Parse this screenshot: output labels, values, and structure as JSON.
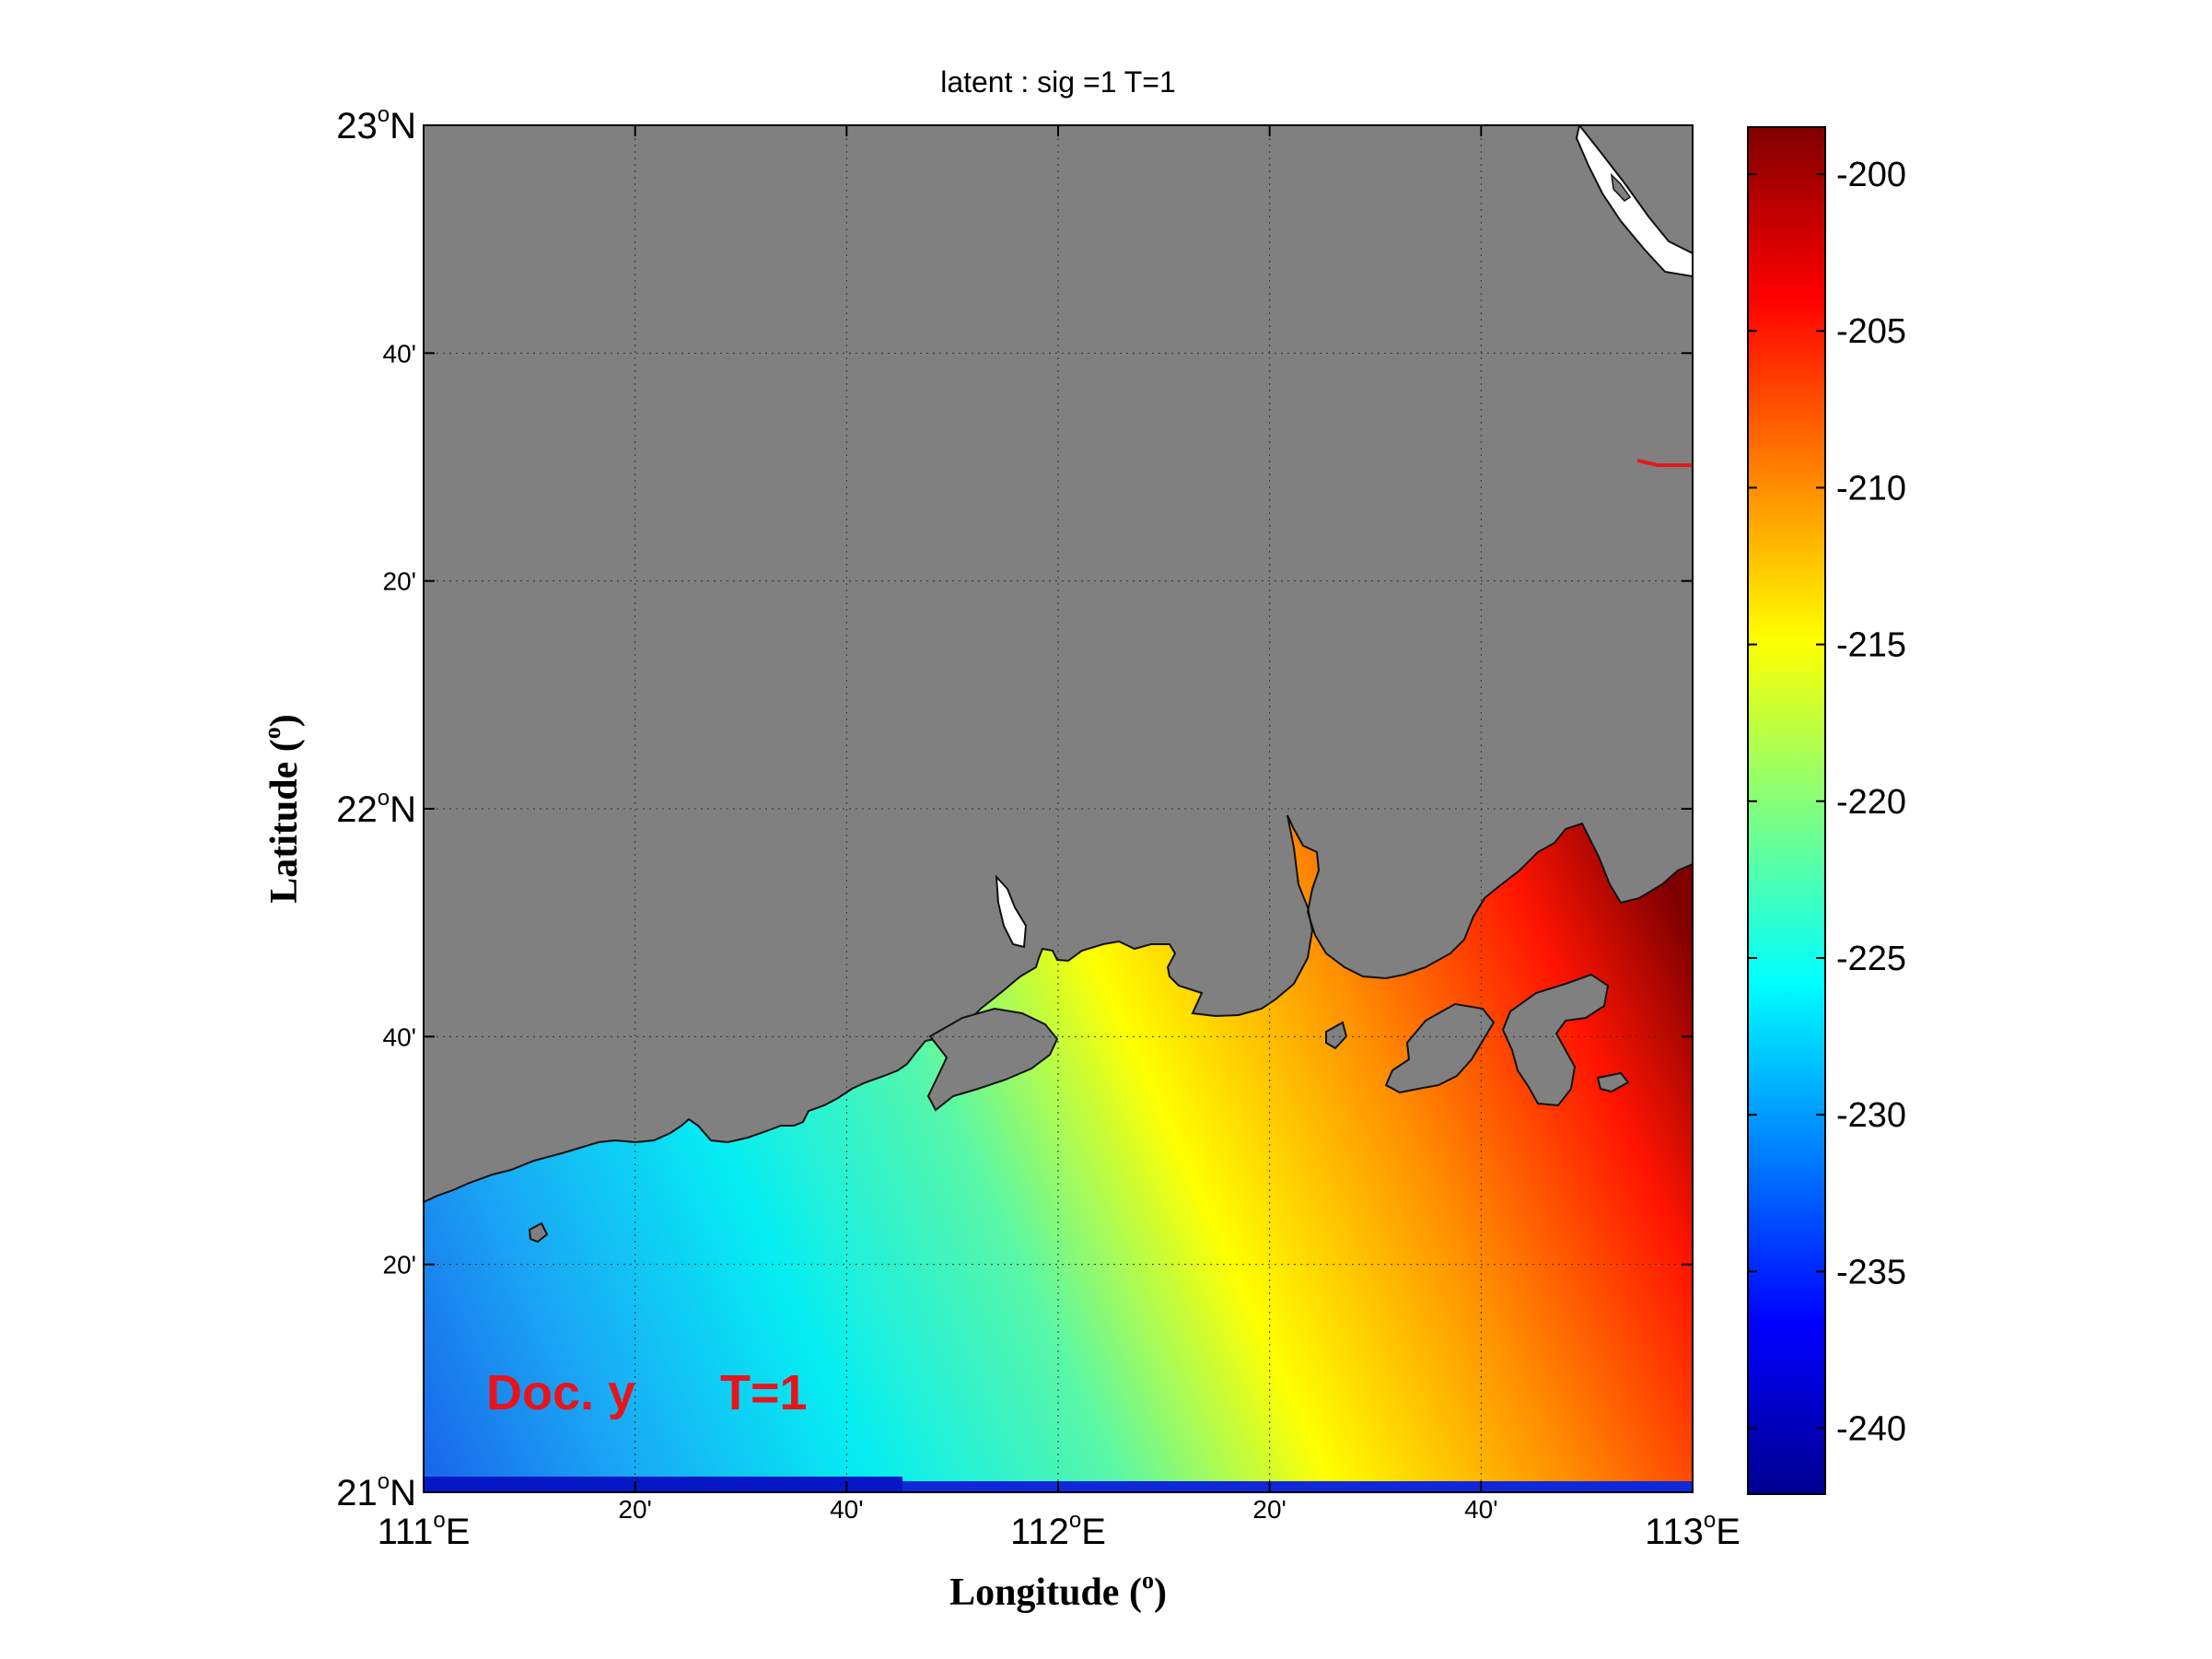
{
  "title": "latent : sig =1   T=1",
  "xlabel": "Longitude (",
  "ylabel": "Latitude (",
  "label_sup": "o",
  "label_close": ")",
  "x_ticks": [
    {
      "deg": "111",
      "suffix": "E",
      "minor": false
    },
    {
      "text": "20'",
      "minor": true
    },
    {
      "text": "40'",
      "minor": true
    },
    {
      "deg": "112",
      "suffix": "E",
      "minor": false
    },
    {
      "text": "20'",
      "minor": true
    },
    {
      "text": "40'",
      "minor": true
    },
    {
      "deg": "113",
      "suffix": "E",
      "minor": false
    }
  ],
  "y_ticks": [
    {
      "deg": "21",
      "suffix": "N",
      "minor": false
    },
    {
      "text": "20'",
      "minor": true
    },
    {
      "text": "40'",
      "minor": true
    },
    {
      "deg": "22",
      "suffix": "N",
      "minor": false
    },
    {
      "text": "20'",
      "minor": true
    },
    {
      "text": "40'",
      "minor": true
    },
    {
      "deg": "23",
      "suffix": "N",
      "minor": false
    }
  ],
  "annotation": {
    "left": "Doc. y",
    "right": "T=1",
    "color": "#e8141c"
  },
  "colorbar": {
    "ticks": [
      "-200",
      "-205",
      "-210",
      "-215",
      "-220",
      "-225",
      "-230",
      "-235",
      "-240"
    ],
    "range": [
      -242.1,
      -198.5
    ],
    "colormap": "jet"
  },
  "chart_data": {
    "type": "heatmap",
    "title": "latent : sig =1   T=1",
    "xlabel": "Longitude (o)",
    "ylabel": "Latitude (o)",
    "xlim": [
      111.0,
      113.0
    ],
    "ylim": [
      21.0,
      23.0
    ],
    "value_range": [
      -242.1,
      -198.5
    ],
    "colormap": "jet",
    "grid": true,
    "land_color": "#808080",
    "field_samples": [
      {
        "lon": 111.1,
        "lat": 21.1,
        "value": -231
      },
      {
        "lon": 111.5,
        "lat": 21.3,
        "value": -226
      },
      {
        "lon": 112.0,
        "lat": 21.6,
        "value": -217
      },
      {
        "lon": 112.5,
        "lat": 21.5,
        "value": -214
      },
      {
        "lon": 112.9,
        "lat": 21.2,
        "value": -207
      },
      {
        "lon": 112.95,
        "lat": 21.8,
        "value": -199
      },
      {
        "lon": 112.4,
        "lat": 21.85,
        "value": -210
      }
    ]
  }
}
